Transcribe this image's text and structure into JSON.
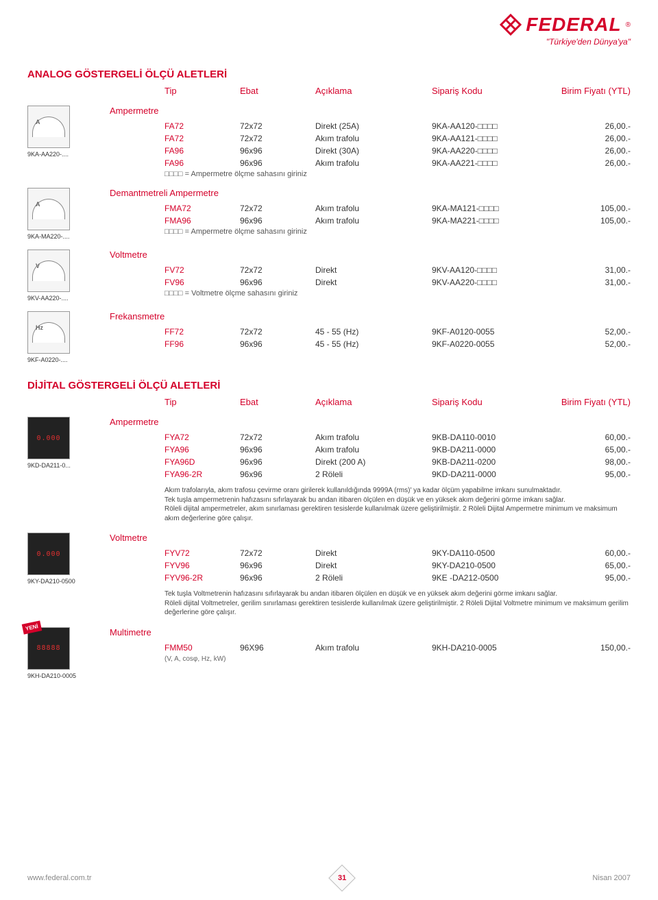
{
  "brand": {
    "name": "FEDERAL",
    "reg": "®",
    "tagline": "\"Türkiye'den Dünya'ya\"",
    "icon_color": "#d4002a"
  },
  "columns": {
    "c1": "Tip",
    "c2": "Ebat",
    "c3": "Açıklama",
    "c4": "Sipariş Kodu",
    "c5": "Birim Fiyatı (YTL)"
  },
  "primary_color": "#d4002a",
  "section1": {
    "title": "ANALOG GÖSTERGELİ ÖLÇÜ ALETLERİ",
    "categories": [
      {
        "name": "Ampermetre",
        "thumb_caption": "9KA-AA220-....",
        "thumb_unit": "A",
        "rows": [
          {
            "tip": "FA72",
            "ebat": "72x72",
            "aciklama": "Direkt (25A)",
            "kod": "9KA-AA120-□□□□",
            "fiyat": "26,00.-"
          },
          {
            "tip": "FA72",
            "ebat": "72x72",
            "aciklama": "Akım trafolu",
            "kod": "9KA-AA121-□□□□",
            "fiyat": "26,00.-"
          },
          {
            "tip": "FA96",
            "ebat": "96x96",
            "aciklama": "Direkt (30A)",
            "kod": "9KA-AA220-□□□□",
            "fiyat": "26,00.-"
          },
          {
            "tip": "FA96",
            "ebat": "96x96",
            "aciklama": "Akım trafolu",
            "kod": "9KA-AA221-□□□□",
            "fiyat": "26,00.-"
          }
        ],
        "note": "□□□□ = Ampermetre ölçme sahasını giriniz"
      },
      {
        "name": "Demantmetreli Ampermetre",
        "thumb_caption": "9KA-MA220-....",
        "thumb_unit": "A",
        "rows": [
          {
            "tip": "FMA72",
            "ebat": "72x72",
            "aciklama": "Akım trafolu",
            "kod": "9KA-MA121-□□□□",
            "fiyat": "105,00.-"
          },
          {
            "tip": "FMA96",
            "ebat": "96x96",
            "aciklama": "Akım trafolu",
            "kod": "9KA-MA221-□□□□",
            "fiyat": "105,00.-"
          }
        ],
        "note": "□□□□ = Ampermetre ölçme sahasını giriniz"
      },
      {
        "name": "Voltmetre",
        "thumb_caption": "9KV-AA220-....",
        "thumb_unit": "V",
        "rows": [
          {
            "tip": "FV72",
            "ebat": "72x72",
            "aciklama": "Direkt",
            "kod": "9KV-AA120-□□□□",
            "fiyat": "31,00.-"
          },
          {
            "tip": "FV96",
            "ebat": "96x96",
            "aciklama": "Direkt",
            "kod": "9KV-AA220-□□□□",
            "fiyat": "31,00.-"
          }
        ],
        "note": "□□□□ = Voltmetre ölçme sahasını giriniz"
      },
      {
        "name": "Frekansmetre",
        "thumb_caption": "9KF-A0220-....",
        "thumb_unit": "Hz",
        "rows": [
          {
            "tip": "FF72",
            "ebat": "72x72",
            "aciklama": "45 - 55 (Hz)",
            "kod": "9KF-A0120-0055",
            "fiyat": "52,00.-"
          },
          {
            "tip": "FF96",
            "ebat": "96x96",
            "aciklama": "45 - 55 (Hz)",
            "kod": "9KF-A0220-0055",
            "fiyat": "52,00.-"
          }
        ]
      }
    ]
  },
  "section2": {
    "title": "DİJİTAL GÖSTERGELİ ÖLÇÜ ALETLERİ",
    "categories": [
      {
        "name": "Ampermetre",
        "thumb_caption": "9KD-DA211-0...",
        "thumb_digits": "0.000",
        "rows": [
          {
            "tip": "FYA72",
            "ebat": "72x72",
            "aciklama": "Akım trafolu",
            "kod": "9KB-DA110-0010",
            "fiyat": "60,00.-"
          },
          {
            "tip": "FYA96",
            "ebat": "96x96",
            "aciklama": "Akım trafolu",
            "kod": "9KB-DA211-0000",
            "fiyat": "65,00.-"
          },
          {
            "tip": "FYA96D",
            "ebat": "96x96",
            "aciklama": "Direkt (200 A)",
            "kod": "9KB-DA211-0200",
            "fiyat": "98,00.-"
          },
          {
            "tip": "FYA96-2R",
            "ebat": "96x96",
            "aciklama": "2 Röleli",
            "kod": "9KD-DA211-0000",
            "fiyat": "95,00.-"
          }
        ],
        "desc": "Akım trafolarıyla, akım trafosu çevirme oranı girilerek kullanıldığında 9999A (rms)' ya kadar ölçüm yapabilme imkanı sunulmaktadır.\nTek tuşla ampermetrenin hafızasını sıfırlayarak bu andan itibaren ölçülen en düşük ve en yüksek akım değerini görme imkanı sağlar.\nRöleli dijital ampermetreler, akım sınırlaması gerektiren tesislerde kullanılmak üzere geliştirilmiştir. 2 Röleli Dijital Ampermetre minimum ve maksimum akım değerlerine göre çalışır."
      },
      {
        "name": "Voltmetre",
        "thumb_caption": "9KY-DA210-0500",
        "thumb_digits": "0.000",
        "rows": [
          {
            "tip": "FYV72",
            "ebat": "72x72",
            "aciklama": "Direkt",
            "kod": "9KY-DA110-0500",
            "fiyat": "60,00.-"
          },
          {
            "tip": "FYV96",
            "ebat": "96x96",
            "aciklama": "Direkt",
            "kod": "9KY-DA210-0500",
            "fiyat": "65,00.-"
          },
          {
            "tip": "FYV96-2R",
            "ebat": "96x96",
            "aciklama": "2 Röleli",
            "kod": "9KE -DA212-0500",
            "fiyat": "95,00.-"
          }
        ],
        "desc": "Tek tuşla Voltmetrenin hafızasını sıfırlayarak bu andan itibaren ölçülen en düşük ve en yüksek akım değerini görme imkanı sağlar.\nRöleli dijital Voltmetreler, gerilim sınırlaması gerektiren tesislerde kullanılmak üzere geliştirilmiştir. 2 Röleli Dijital Voltmetre minimum ve maksimum gerilim değerlerine göre çalışır."
      },
      {
        "name": "Multimetre",
        "thumb_caption": "9KH-DA210-0005",
        "badge": "YENİ",
        "thumb_digits": "88888",
        "rows": [
          {
            "tip": "FMM50",
            "ebat": "96X96",
            "aciklama": "Akım trafolu",
            "kod": "9KH-DA210-0005",
            "fiyat": "150,00.-"
          }
        ],
        "subline": "(V, A, cosφ, Hz, kW)"
      }
    ]
  },
  "footer": {
    "url": "www.federal.com.tr",
    "page": "31",
    "date": "Nisan 2007"
  }
}
